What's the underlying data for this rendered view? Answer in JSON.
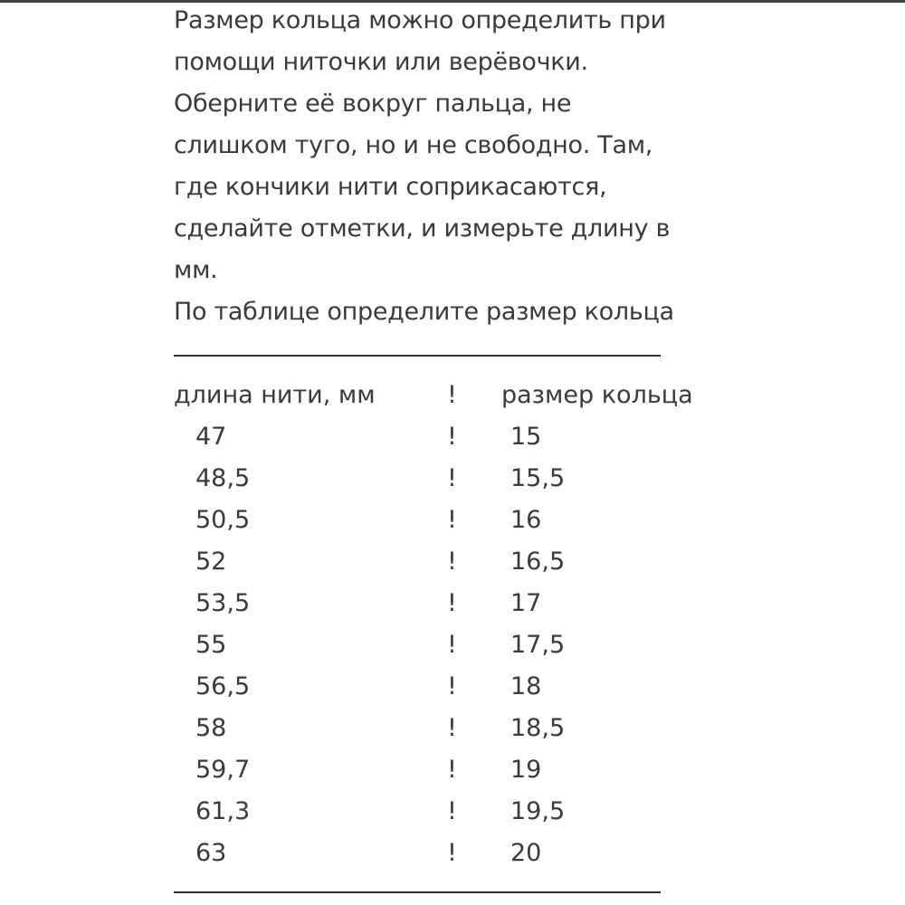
{
  "intro_lines": [
    "Размер кольца можно определить при",
    "помощи ниточки или верёвочки.",
    "Оберните её вокруг пальца, не",
    "слишком туго, но и не свободно. Там,",
    "где кончики нити соприкасаются,",
    "сделайте отметки, и измерьте длину в",
    "мм.",
    "По таблице определите размер кольца"
  ],
  "table": {
    "header": {
      "length": "длина нити, мм",
      "sep": "!",
      "size": "размер кольца"
    },
    "rows": [
      {
        "length": "47",
        "sep": "!",
        "size": "15"
      },
      {
        "length": "48,5",
        "sep": "!",
        "size": "15,5"
      },
      {
        "length": "50,5",
        "sep": "!",
        "size": "16"
      },
      {
        "length": "52",
        "sep": "!",
        "size": "16,5"
      },
      {
        "length": "53,5",
        "sep": "!",
        "size": "17"
      },
      {
        "length": "55",
        "sep": "!",
        "size": "17,5"
      },
      {
        "length": "56,5",
        "sep": "!",
        "size": "18"
      },
      {
        "length": "58",
        "sep": "!",
        "size": "18,5"
      },
      {
        "length": "59,7",
        "sep": "!",
        "size": "19"
      },
      {
        "length": "61,3",
        "sep": "!",
        "size": "19,5"
      },
      {
        "length": "63",
        "sep": "!",
        "size": "20"
      }
    ]
  }
}
